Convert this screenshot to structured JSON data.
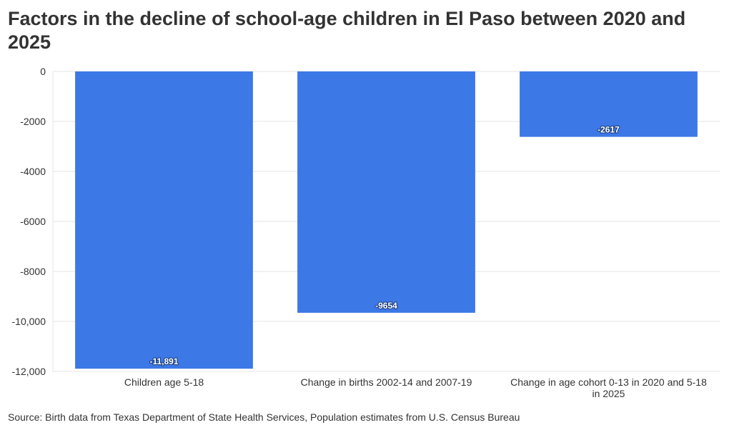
{
  "title": "Factors in the decline of school-age children in El Paso between 2020 and 2025",
  "source": "Source: Birth data from Texas Department of State Health Services, Population estimates from U.S. Census Bureau",
  "colors": {
    "bar": "#3c78e6",
    "grid": "#e6e6e6",
    "text": "#333333",
    "label_text": "#ffffff"
  },
  "chart_data": {
    "type": "bar",
    "categories": [
      [
        "Children age 5-18"
      ],
      [
        "Change in births 2002-14 and 2007-19"
      ],
      [
        "Change in age cohort 0-13 in 2020 and 5-18",
        "in 2025"
      ]
    ],
    "values": [
      -11891,
      -9654,
      -2617
    ],
    "data_labels": [
      "-11,891",
      "-9654",
      "-2617"
    ],
    "ylim": [
      -12000,
      0
    ],
    "y_ticks": [
      0,
      -2000,
      -4000,
      -6000,
      -8000,
      -10000,
      -12000
    ],
    "y_tick_labels": [
      "0",
      "-2000",
      "-4000",
      "-6000",
      "-8000",
      "-10,000",
      "-12,000"
    ],
    "grid": true,
    "xlabel": "",
    "ylabel": ""
  }
}
